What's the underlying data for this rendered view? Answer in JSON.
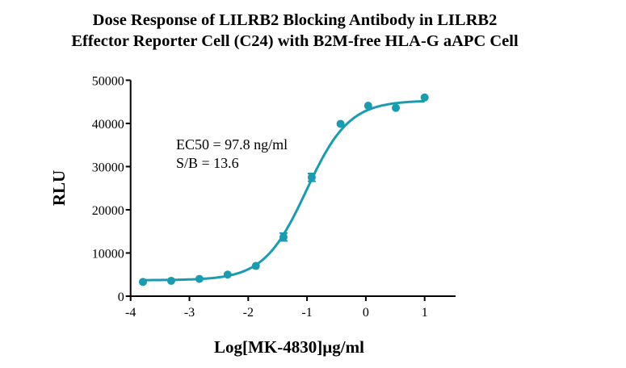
{
  "chart_data": {
    "type": "scatter",
    "title_lines": [
      "Dose Response of LILRB2 Blocking Antibody in LILRB2",
      "Effector Reporter Cell (C24) with B2M-free HLA-G aAPC Cell"
    ],
    "xlabel": "Log[MK-4830]µg/ml",
    "ylabel": "RLU",
    "xlim": [
      -4,
      1.5
    ],
    "ylim": [
      0,
      50000
    ],
    "xticks": [
      -4,
      -3,
      -2,
      -1,
      0,
      1
    ],
    "yticks": [
      0,
      10000,
      20000,
      30000,
      40000,
      50000
    ],
    "grid": false,
    "color": "#1a9bb0",
    "points": {
      "x": [
        -3.79,
        -3.31,
        -2.83,
        -2.35,
        -1.87,
        -1.4,
        -0.92,
        -0.43,
        0.04,
        0.51,
        1.0
      ],
      "y": [
        3300,
        3560,
        4000,
        5000,
        7000,
        13700,
        27500,
        39900,
        44100,
        43600,
        46000
      ],
      "err": [
        0,
        0,
        0,
        0,
        0,
        900,
        900,
        0,
        0,
        0,
        0
      ]
    },
    "fit": {
      "model": "4PL",
      "bottom": 3700,
      "top": 45300,
      "logEC50": -1.01,
      "hill": 1.2
    },
    "annotations": [
      "EC50 = 97.8 ng/ml",
      "S/B = 13.6"
    ]
  }
}
